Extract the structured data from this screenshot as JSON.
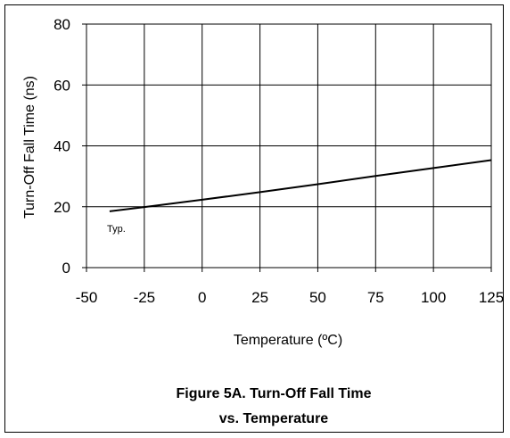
{
  "chart_data": {
    "type": "line",
    "xlabel": "Temperature (ºC)",
    "ylabel": "Turn-Off Fall Time (ns)",
    "xlim": [
      -50,
      125
    ],
    "ylim": [
      0,
      80
    ],
    "x_ticks": [
      "-50",
      "-25",
      "0",
      "25",
      "50",
      "75",
      "100",
      "125"
    ],
    "y_ticks": [
      "0",
      "20",
      "40",
      "60",
      "80"
    ],
    "grid": true,
    "series": [
      {
        "name": "Typ.",
        "x": [
          -40,
          -25,
          0,
          25,
          50,
          75,
          100,
          125
        ],
        "y": [
          18.5,
          19.9,
          22.3,
          24.8,
          27.4,
          30.1,
          32.7,
          35.3
        ]
      }
    ],
    "annotations": [
      "Typ."
    ],
    "caption_line1": "Figure 5A. Turn-Off Fall Time",
    "caption_line2": "vs. Temperature",
    "line_color": "#000000"
  }
}
